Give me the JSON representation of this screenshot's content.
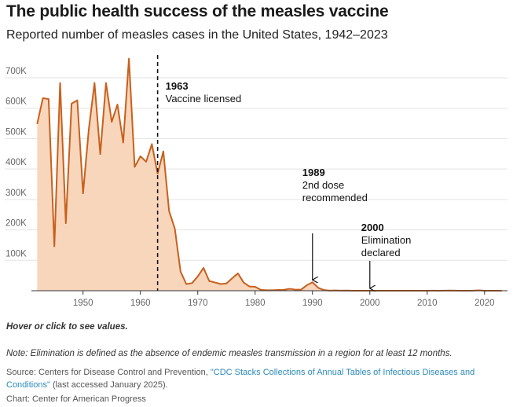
{
  "header": {
    "title": "The public health success of the measles vaccine",
    "subtitle": "Reported number of measles cases in the United States, 1942–2023"
  },
  "footer": {
    "hint": "Hover or click to see values.",
    "note": "Note: Elimination is defined as the absence of endemic measles transmission in a region for at least 12 months.",
    "source_prefix": "Source: Centers for Disease Control and Prevention, ",
    "source_link": "\"CDC Stacks Collections of Annual Tables of Infectious Diseases and Conditions\"",
    "source_suffix": " (last accessed January 2025).",
    "credit": "Chart: Center for American Progress"
  },
  "colors": {
    "line": "#c8601d",
    "fill": "#f8d6bc",
    "grid": "#e3e3e3",
    "axis": "#333333",
    "link": "#2a8ab8"
  },
  "chart_data": {
    "type": "area",
    "title": "The public health success of the measles vaccine",
    "subtitle": "Reported number of measles cases in the United States, 1942–2023",
    "xlabel": "",
    "ylabel": "",
    "xlim": [
      1941,
      2024
    ],
    "ylim": [
      0,
      780000
    ],
    "grid": true,
    "y_ticks": [
      100000,
      200000,
      300000,
      400000,
      500000,
      600000,
      700000
    ],
    "y_tick_labels": [
      "100K",
      "200K",
      "300K",
      "400K",
      "500K",
      "600K",
      "700K"
    ],
    "x_ticks": [
      1950,
      1960,
      1970,
      1980,
      1990,
      2000,
      2010,
      2020
    ],
    "x_tick_labels": [
      "1950",
      "1960",
      "1970",
      "1980",
      "1990",
      "2000",
      "2010",
      "2020"
    ],
    "series": [
      {
        "name": "Reported measles cases",
        "x": [
          1942,
          1943,
          1944,
          1945,
          1946,
          1947,
          1948,
          1949,
          1950,
          1951,
          1952,
          1953,
          1954,
          1955,
          1956,
          1957,
          1958,
          1959,
          1960,
          1961,
          1962,
          1963,
          1964,
          1965,
          1966,
          1967,
          1968,
          1969,
          1970,
          1971,
          1972,
          1973,
          1974,
          1975,
          1976,
          1977,
          1978,
          1979,
          1980,
          1981,
          1982,
          1983,
          1984,
          1985,
          1986,
          1987,
          1988,
          1989,
          1990,
          1991,
          1992,
          1993,
          1994,
          1995,
          1996,
          1997,
          1998,
          1999,
          2000,
          2001,
          2002,
          2003,
          2004,
          2005,
          2006,
          2007,
          2008,
          2009,
          2010,
          2011,
          2012,
          2013,
          2014,
          2015,
          2016,
          2017,
          2018,
          2019,
          2020,
          2021,
          2022,
          2023
        ],
        "values": [
          548000,
          633000,
          630000,
          146000,
          683000,
          222000,
          615000,
          626000,
          320000,
          530000,
          683000,
          449000,
          683000,
          555000,
          612000,
          487000,
          763000,
          407000,
          442000,
          424000,
          482000,
          385000,
          458000,
          262000,
          204000,
          63000,
          22000,
          25000,
          47000,
          75000,
          32000,
          27000,
          22000,
          24000,
          41000,
          57000,
          27000,
          14000,
          13000,
          3000,
          1700,
          1500,
          2600,
          2800,
          6300,
          3700,
          3400,
          18000,
          27800,
          9600,
          2200,
          310,
          960,
          300,
          510,
          140,
          100,
          100,
          86,
          116,
          44,
          56,
          37,
          66,
          55,
          43,
          140,
          71,
          63,
          220,
          55,
          187,
          667,
          188,
          86,
          120,
          375,
          1274,
          13,
          49,
          121,
          59
        ]
      }
    ],
    "annotations": [
      {
        "id": "vaccine",
        "x": 1963,
        "year_label": "1963",
        "lines": [
          "Vaccine licensed"
        ],
        "style": "dashed-line"
      },
      {
        "id": "second-dose",
        "x": 1990,
        "year_label": "1989",
        "lines": [
          "2nd dose",
          "recommended"
        ],
        "style": "arrow"
      },
      {
        "id": "elimination",
        "x": 2000,
        "year_label": "2000",
        "lines": [
          "Elimination",
          "declared"
        ],
        "style": "arrow"
      }
    ]
  }
}
